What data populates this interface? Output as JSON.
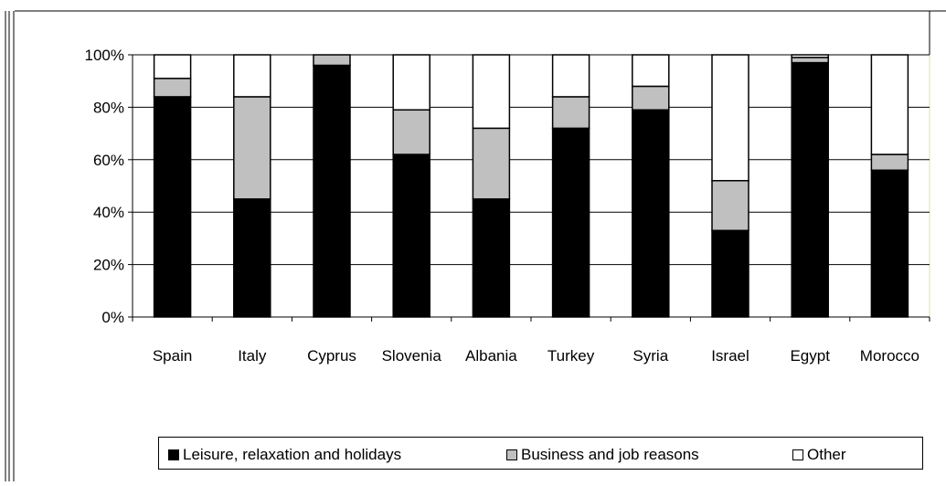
{
  "chart_data": {
    "type": "bar",
    "stacked": true,
    "categories": [
      "Spain",
      "Italy",
      "Cyprus",
      "Slovenia",
      "Albania",
      "Turkey",
      "Syria",
      "Israel",
      "Egypt",
      "Morocco"
    ],
    "series": [
      {
        "name": "Leisure, relaxation and holidays",
        "color": "#000000",
        "values": [
          84,
          45,
          96,
          62,
          45,
          72,
          79,
          33,
          97,
          56
        ]
      },
      {
        "name": "Business and job reasons",
        "color": "#c0c0c0",
        "values": [
          7,
          39,
          4,
          17,
          27,
          12,
          9,
          19,
          2,
          6
        ]
      },
      {
        "name": "Other",
        "color": "#ffffff",
        "values": [
          9,
          16,
          0,
          21,
          28,
          16,
          12,
          48,
          1,
          38
        ]
      }
    ],
    "ytick_labels": [
      "0%",
      "20%",
      "40%",
      "60%",
      "80%",
      "100%"
    ],
    "ylim": [
      0,
      100
    ],
    "grid": true,
    "legend_position": "bottom"
  }
}
